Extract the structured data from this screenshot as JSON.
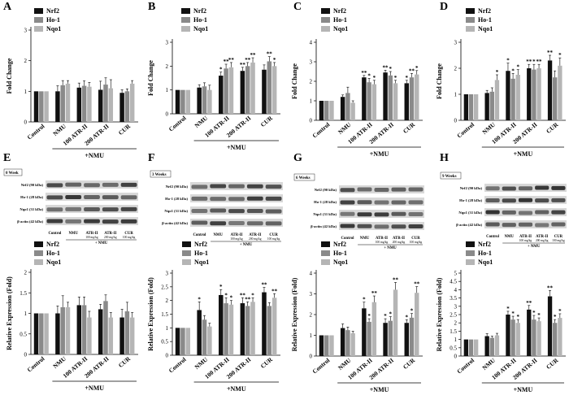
{
  "colors": {
    "nrf2": "#111111",
    "ho1": "#8a8a8a",
    "nqo1": "#b5b5b5",
    "band": "#2a2a2a"
  },
  "chart_data": [
    {
      "type": "bar",
      "panel": "A",
      "ylabel": "Fold Change",
      "ylim": [
        0,
        3
      ],
      "yticks": [
        0,
        1,
        2,
        3
      ],
      "categories": [
        "Control",
        "NMU",
        "100 ATR-II",
        "200 ATR-II",
        "CUR"
      ],
      "xgroup_label": "+NMU",
      "legend": [
        "Nrf2",
        "Ho-1",
        "Nqo1"
      ],
      "series": [
        {
          "name": "Nrf2",
          "values": [
            1.0,
            1.0,
            1.12,
            1.05,
            0.95
          ],
          "errors": [
            0,
            0.18,
            0.15,
            0.28,
            0.1
          ],
          "marks": [
            "",
            "",
            "",
            "",
            ""
          ]
        },
        {
          "name": "Ho-1",
          "values": [
            1.0,
            1.2,
            1.18,
            1.22,
            1.0
          ],
          "errors": [
            0,
            0.15,
            0.16,
            0.22,
            0.08
          ],
          "marks": [
            "",
            "",
            "",
            "",
            ""
          ]
        },
        {
          "name": "Nqo1",
          "values": [
            1.0,
            1.25,
            1.15,
            1.1,
            1.25
          ],
          "errors": [
            0,
            0.1,
            0.14,
            0.28,
            0.1
          ],
          "marks": [
            "",
            "",
            "",
            "",
            ""
          ]
        }
      ]
    },
    {
      "type": "bar",
      "panel": "B",
      "ylabel": "Fold Change",
      "ylim": [
        0,
        3
      ],
      "yticks": [
        0,
        1,
        2,
        3
      ],
      "categories": [
        "Control",
        "NMU",
        "100 ATR-II",
        "200 ATR-II",
        "CUR"
      ],
      "xgroup_label": "+NMU",
      "legend": [
        "Nrf2",
        "Ho-1",
        "Nqo1"
      ],
      "series": [
        {
          "name": "Nrf2",
          "values": [
            1.0,
            1.1,
            1.6,
            1.8,
            1.85
          ],
          "errors": [
            0,
            0.12,
            0.15,
            0.15,
            0.2
          ],
          "marks": [
            "",
            "",
            "*",
            "**",
            ""
          ]
        },
        {
          "name": "Ho-1",
          "values": [
            1.0,
            1.15,
            1.9,
            2.0,
            2.2
          ],
          "errors": [
            0,
            0.15,
            0.18,
            0.15,
            0.2
          ],
          "marks": [
            "",
            "",
            "**",
            "**",
            "**"
          ]
        },
        {
          "name": "Nqo1",
          "values": [
            1.0,
            1.0,
            1.95,
            2.15,
            2.0
          ],
          "errors": [
            0,
            0.2,
            0.2,
            0.2,
            0.15
          ],
          "marks": [
            "",
            "",
            "**",
            "**",
            "*"
          ]
        }
      ]
    },
    {
      "type": "bar",
      "panel": "C",
      "ylabel": "Fold Change",
      "ylim": [
        0,
        4
      ],
      "yticks": [
        0,
        1,
        2,
        3,
        4
      ],
      "categories": [
        "Control",
        "NMU",
        "100 ATR-II",
        "200 ATR-II",
        "CUR"
      ],
      "xgroup_label": "+NMU",
      "legend": [
        "Nrf2",
        "Ho-1",
        "Nqo1"
      ],
      "series": [
        {
          "name": "Nrf2",
          "values": [
            1.0,
            1.2,
            2.2,
            2.45,
            1.9
          ],
          "errors": [
            0,
            0.1,
            0.1,
            0.12,
            0.15
          ],
          "marks": [
            "",
            "",
            "**",
            "**",
            "*"
          ]
        },
        {
          "name": "Ho-1",
          "values": [
            1.0,
            1.4,
            1.95,
            2.3,
            2.2
          ],
          "errors": [
            0,
            0.3,
            0.2,
            0.2,
            0.2
          ],
          "marks": [
            "",
            "",
            "*",
            "*",
            "**"
          ]
        },
        {
          "name": "Nqo1",
          "values": [
            1.0,
            0.9,
            1.85,
            1.9,
            2.35
          ],
          "errors": [
            0,
            0.1,
            0.2,
            0.15,
            0.2
          ],
          "marks": [
            "",
            "",
            "*",
            "*",
            "*"
          ]
        }
      ]
    },
    {
      "type": "bar",
      "panel": "D",
      "ylabel": "Fold Change",
      "ylim": [
        0,
        3
      ],
      "yticks": [
        0,
        1,
        2,
        3
      ],
      "categories": [
        "Control",
        "NMU",
        "100 ATR-II",
        "200 ATR-II",
        "CUR"
      ],
      "xgroup_label": "+NMU",
      "legend": [
        "Nrf2",
        "Ho-1",
        "Nqo1"
      ],
      "series": [
        {
          "name": "Nrf2",
          "values": [
            1.0,
            1.05,
            1.9,
            2.0,
            2.3
          ],
          "errors": [
            0,
            0.1,
            0.3,
            0.15,
            0.2
          ],
          "marks": [
            "",
            "",
            "*",
            "**",
            "**"
          ]
        },
        {
          "name": "Ho-1",
          "values": [
            1.0,
            1.1,
            1.6,
            1.95,
            1.65
          ],
          "errors": [
            0,
            0.15,
            0.2,
            0.2,
            0.25
          ],
          "marks": [
            "",
            "",
            "*",
            "*",
            ""
          ]
        },
        {
          "name": "Nqo1",
          "values": [
            1.0,
            1.55,
            1.75,
            2.0,
            2.1
          ],
          "errors": [
            0,
            0.2,
            0.2,
            0.15,
            0.3
          ],
          "marks": [
            "",
            "*",
            "*",
            "**",
            "*"
          ]
        }
      ]
    },
    {
      "type": "bar",
      "panel": "E",
      "ylabel": "Relative Expression (Fold)",
      "ylim": [
        0,
        2
      ],
      "yticks": [
        0,
        0.5,
        1,
        1.5,
        2
      ],
      "categories": [
        "Control",
        "NMU",
        "100 ATR-II",
        "200 ATR-II",
        "CUR"
      ],
      "xgroup_label": "+NMU",
      "legend": [
        "Nrf2",
        "Ho-1",
        "Nqo1"
      ],
      "series": [
        {
          "name": "Nrf2",
          "values": [
            1.0,
            1.0,
            1.2,
            1.1,
            0.9
          ],
          "errors": [
            0,
            0.18,
            0.2,
            0.12,
            0.2
          ],
          "marks": [
            "",
            "",
            "",
            "",
            ""
          ]
        },
        {
          "name": "Ho-1",
          "values": [
            1.0,
            1.15,
            1.2,
            1.3,
            1.05
          ],
          "errors": [
            0,
            0.28,
            0.2,
            0.15,
            0.22
          ],
          "marks": [
            "",
            "",
            "",
            "",
            ""
          ]
        },
        {
          "name": "Nqo1",
          "values": [
            1.0,
            1.15,
            0.9,
            0.9,
            0.9
          ],
          "errors": [
            0,
            0.12,
            0.15,
            0.12,
            0.12
          ],
          "marks": [
            "",
            "",
            "",
            "",
            ""
          ]
        }
      ]
    },
    {
      "type": "bar",
      "panel": "F",
      "ylabel": "Relative Expression (Fold)",
      "ylim": [
        0,
        3
      ],
      "yticks": [
        0,
        0.5,
        1,
        1.5,
        2,
        2.5,
        3
      ],
      "categories": [
        "Control",
        "NMU",
        "100 ATR-II",
        "200 ATR-II",
        "CUR"
      ],
      "xgroup_label": "+NMU",
      "legend": [
        "Nrf2",
        "Ho-1",
        "Nqo1"
      ],
      "series": [
        {
          "name": "Nrf2",
          "values": [
            1.0,
            1.65,
            2.2,
            1.9,
            2.3
          ],
          "errors": [
            0,
            0.3,
            0.2,
            0.2,
            0.18
          ],
          "marks": [
            "",
            "*",
            "*",
            "**",
            "**"
          ]
        },
        {
          "name": "Ho-1",
          "values": [
            1.0,
            1.3,
            1.9,
            1.8,
            1.8
          ],
          "errors": [
            0,
            0.15,
            0.2,
            0.15,
            0.12
          ],
          "marks": [
            "",
            "",
            "*",
            "**",
            ""
          ]
        },
        {
          "name": "Nqo1",
          "values": [
            1.0,
            1.05,
            1.85,
            1.95,
            2.1
          ],
          "errors": [
            0,
            0.12,
            0.15,
            0.15,
            0.15
          ],
          "marks": [
            "",
            "",
            "*",
            "*",
            "**"
          ]
        }
      ]
    },
    {
      "type": "bar",
      "panel": "G",
      "ylabel": "Relative Expression (Fold)",
      "ylim": [
        0,
        4
      ],
      "yticks": [
        0,
        1,
        2,
        3,
        4
      ],
      "categories": [
        "Control",
        "NMU",
        "100 ATR-II",
        "200 ATR-II",
        "CUR"
      ],
      "xgroup_label": "+NMU",
      "legend": [
        "Nrf2",
        "Ho-1",
        "Nqo1"
      ],
      "series": [
        {
          "name": "Nrf2",
          "values": [
            1.0,
            1.35,
            2.3,
            1.6,
            1.6
          ],
          "errors": [
            0,
            0.2,
            0.3,
            0.2,
            0.15
          ],
          "marks": [
            "",
            "",
            "*",
            "*",
            "*"
          ]
        },
        {
          "name": "Ho-1",
          "values": [
            1.0,
            1.25,
            1.65,
            1.7,
            1.85
          ],
          "errors": [
            0,
            0.15,
            0.15,
            0.2,
            0.2
          ],
          "marks": [
            "",
            "",
            "*",
            "*",
            "*"
          ]
        },
        {
          "name": "Nqo1",
          "values": [
            1.0,
            1.1,
            2.6,
            3.2,
            3.05
          ],
          "errors": [
            0,
            0.1,
            0.3,
            0.35,
            0.3
          ],
          "marks": [
            "",
            "",
            "**",
            "**",
            "**"
          ]
        }
      ]
    },
    {
      "type": "bar",
      "panel": "H",
      "ylabel": "Relative Expression (Fold)",
      "ylim": [
        0,
        5
      ],
      "yticks": [
        0,
        0.5,
        1,
        1.5,
        2,
        2.5,
        3,
        3.5,
        4,
        4.5,
        5
      ],
      "categories": [
        "Control",
        "NMU",
        "100 ATR-II",
        "200 ATR-II",
        "CUR"
      ],
      "xgroup_label": "+NMU",
      "legend": [
        "Nrf2",
        "Ho-1",
        "Nqo1"
      ],
      "series": [
        {
          "name": "Nrf2",
          "values": [
            1.0,
            1.2,
            2.5,
            2.8,
            3.6
          ],
          "errors": [
            0,
            0.15,
            0.2,
            0.25,
            0.35
          ],
          "marks": [
            "",
            "",
            "*",
            "**",
            "**"
          ]
        },
        {
          "name": "Ho-1",
          "values": [
            1.0,
            1.1,
            2.2,
            2.2,
            2.0
          ],
          "errors": [
            0,
            0.1,
            0.2,
            0.25,
            0.2
          ],
          "marks": [
            "",
            "",
            "*",
            "*",
            "*"
          ]
        },
        {
          "name": "Nqo1",
          "values": [
            1.0,
            1.25,
            2.0,
            2.1,
            2.3
          ],
          "errors": [
            0,
            0.12,
            0.2,
            0.2,
            0.25
          ],
          "marks": [
            "",
            "",
            "*",
            "*",
            "*"
          ]
        }
      ]
    }
  ],
  "blots": [
    {
      "panel": "E",
      "week": "0 Week",
      "rows": [
        "Nrf2 (90 kDa)",
        "Ho-1 (28 kDa)",
        "Nqo1 (31 kDa)",
        "β-actin (42 kDa)"
      ],
      "lanes": [
        {
          "t": "Control",
          "d": ""
        },
        {
          "t": "NMU",
          "d": ""
        },
        {
          "t": "ATR-II",
          "d": "100 mg/kg"
        },
        {
          "t": "ATR-II",
          "d": "200 mg/kg"
        },
        {
          "t": "CUR",
          "d": "100 mg/kg"
        }
      ],
      "group": "+ NMU"
    },
    {
      "panel": "F",
      "week": "3 Weeks",
      "rows": [
        "Nrf2 (90 kDa)",
        "Ho-1 (28 kDa)",
        "Nqo1 (31 kDa)",
        "β-actin (42 kDa)"
      ],
      "lanes": [
        {
          "t": "Control",
          "d": ""
        },
        {
          "t": "NMU",
          "d": ""
        },
        {
          "t": "ATR-II",
          "d": "100 mg/kg"
        },
        {
          "t": "ATR-II",
          "d": "200 mg/kg"
        },
        {
          "t": "CUR",
          "d": "100 mg/kg"
        }
      ],
      "group": "+ NMU"
    },
    {
      "panel": "G",
      "week": "6 Weeks",
      "rows": [
        "Nrf2 (90 kDa)",
        "Ho-1 (28 kDa)",
        "Nqo1 (31 kDa)",
        "β-actin (42 kDa)"
      ],
      "lanes": [
        {
          "t": "Control",
          "d": ""
        },
        {
          "t": "NMU",
          "d": ""
        },
        {
          "t": "ATR-II",
          "d": "100 mg/kg"
        },
        {
          "t": "ATR-II",
          "d": "200 mg/kg"
        },
        {
          "t": "CUR",
          "d": "100 mg/kg"
        }
      ],
      "group": "+ NMU"
    },
    {
      "panel": "H",
      "week": "9 Weeks",
      "rows": [
        "Nrf2 (90 kDa)",
        "Ho-1 (28 kDa)",
        "Nqo1 (31 kDa)",
        "β-actin (42 kDa)"
      ],
      "lanes": [
        {
          "t": "Control",
          "d": ""
        },
        {
          "t": "NMU",
          "d": ""
        },
        {
          "t": "ATR-II",
          "d": "100 mg/kg"
        },
        {
          "t": "ATR-II",
          "d": "200 mg/kg"
        },
        {
          "t": "CUR",
          "d": "100 mg/kg"
        }
      ],
      "group": "+ NMU"
    }
  ]
}
